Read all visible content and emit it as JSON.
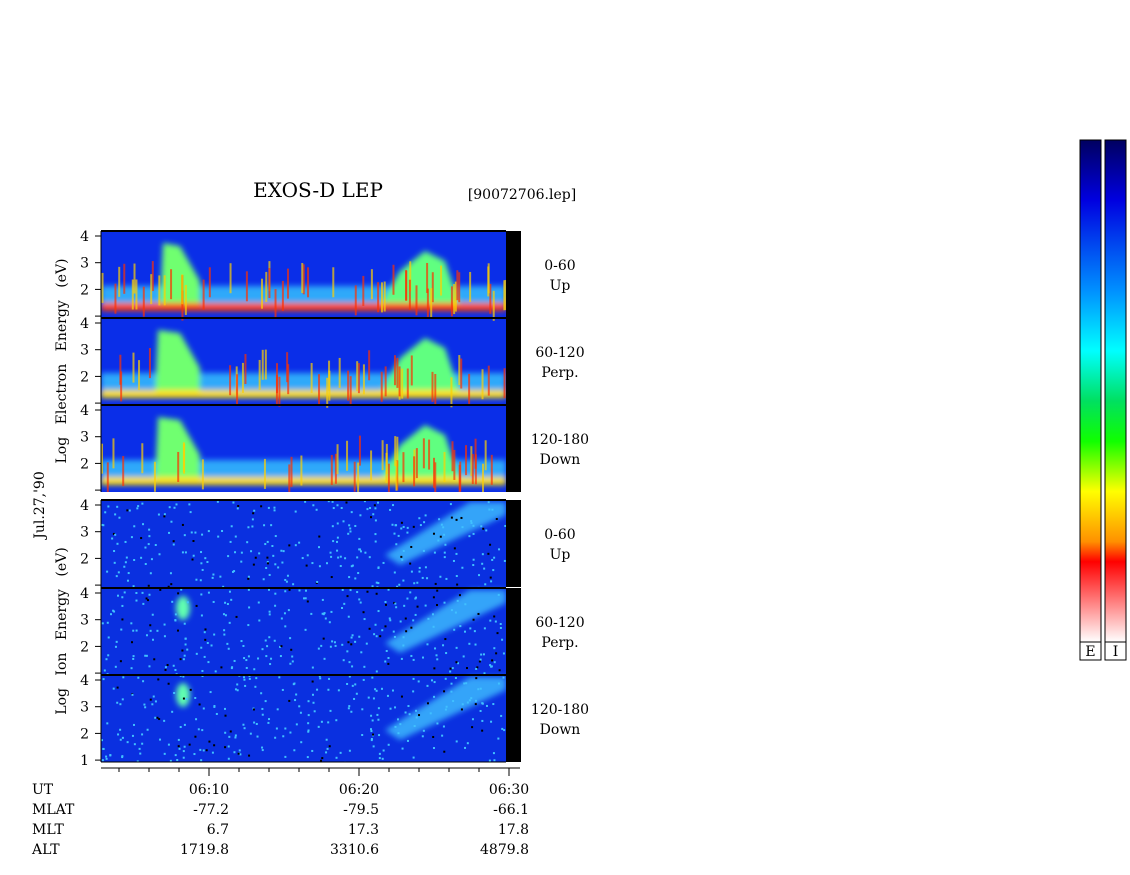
{
  "header": {
    "title": "EXOS-D LEP",
    "file": "[90072706.lep]"
  },
  "date": "Jul.27,'90",
  "axis_labels": [
    "Log Electron Energy (eV)",
    "Log Ion Energy (eV)"
  ],
  "panels": [
    {
      "species": "electron",
      "y_labels": [
        "4",
        "3",
        "2"
      ],
      "angle": "0-60",
      "direction": "Up"
    },
    {
      "species": "electron",
      "y_labels": [
        "4",
        "3",
        "2"
      ],
      "angle": "60-120",
      "direction": "Perp."
    },
    {
      "species": "electron",
      "y_labels": [
        "4",
        "3",
        "2"
      ],
      "angle": "120-180",
      "direction": "Down"
    },
    {
      "species": "ion",
      "y_labels": [
        "4",
        "3",
        "2"
      ],
      "angle": "0-60",
      "direction": "Up"
    },
    {
      "species": "ion",
      "y_labels": [
        "4",
        "3",
        "2"
      ],
      "angle": "60-120",
      "direction": "Perp."
    },
    {
      "species": "ion",
      "y_labels": [
        "4",
        "3",
        "2",
        "1"
      ],
      "angle": "120-180",
      "direction": "Down"
    }
  ],
  "time_rows": [
    {
      "label": "UT",
      "values": [
        "06:10",
        "06:20",
        "06:30"
      ]
    },
    {
      "label": "MLAT",
      "values": [
        "-77.2",
        "-79.5",
        "-66.1"
      ]
    },
    {
      "label": "MLT",
      "values": [
        "6.7",
        "17.3",
        "17.8"
      ]
    },
    {
      "label": "ALT",
      "values": [
        "1719.8",
        "3310.6",
        "4879.8"
      ]
    }
  ],
  "colorbars": [
    "E",
    "I"
  ]
}
